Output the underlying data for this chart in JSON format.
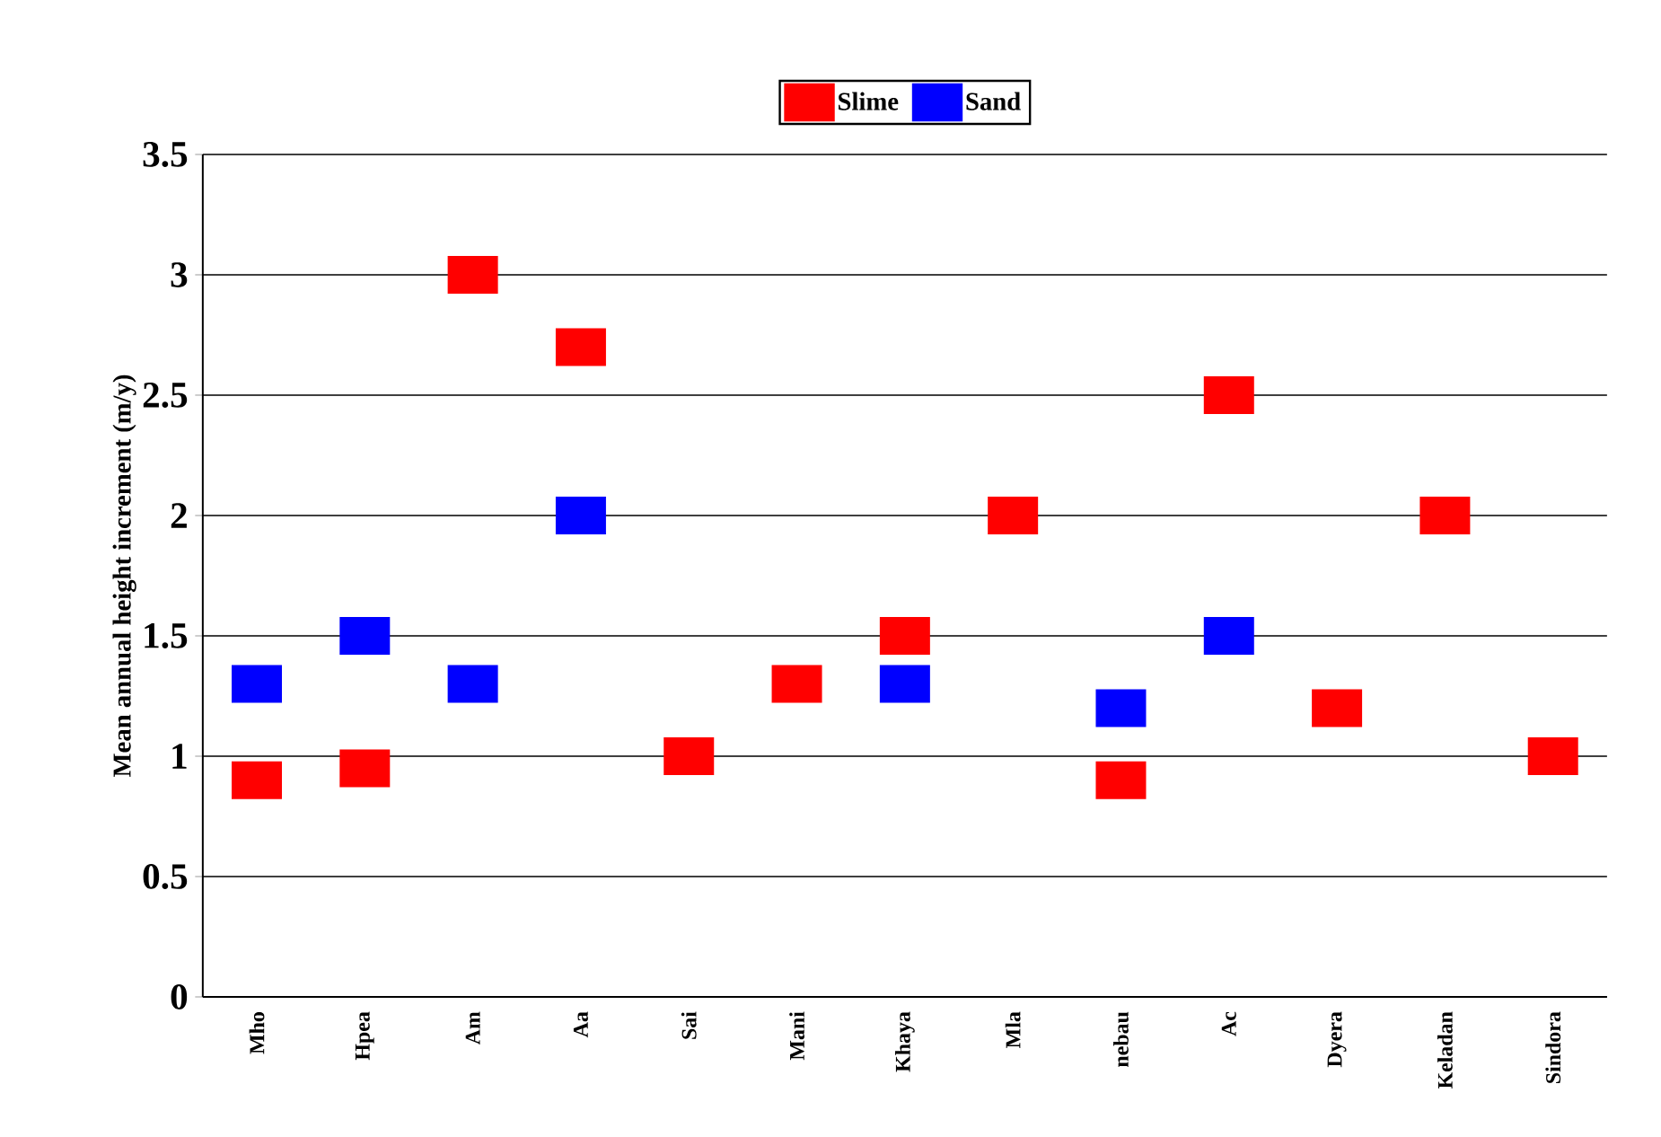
{
  "chart_data": {
    "type": "scatter",
    "ylabel": "Mean annual height increment (m/y)",
    "categories": [
      "Mho",
      "Hpea",
      "Am",
      "Aa",
      "Sai",
      "Mani",
      "Khaya",
      "Mla",
      "nebau",
      "Ac",
      "Dyera",
      "Keladan",
      "Sindora"
    ],
    "series": [
      {
        "name": "Slime",
        "color": "#ff0000",
        "values": [
          0.9,
          0.95,
          3.0,
          2.7,
          1.0,
          1.3,
          1.5,
          2.0,
          0.9,
          2.5,
          1.2,
          2.0,
          1.0
        ]
      },
      {
        "name": "Sand",
        "color": "#0000ff",
        "values": [
          1.3,
          1.5,
          1.3,
          2.0,
          null,
          null,
          1.3,
          null,
          1.2,
          1.5,
          null,
          null,
          null
        ]
      }
    ],
    "ylim": [
      0,
      3.5
    ],
    "yticks": [
      0,
      0.5,
      1,
      1.5,
      2,
      2.5,
      3,
      3.5
    ],
    "grid": "y",
    "legend": "top",
    "marker": "square"
  }
}
